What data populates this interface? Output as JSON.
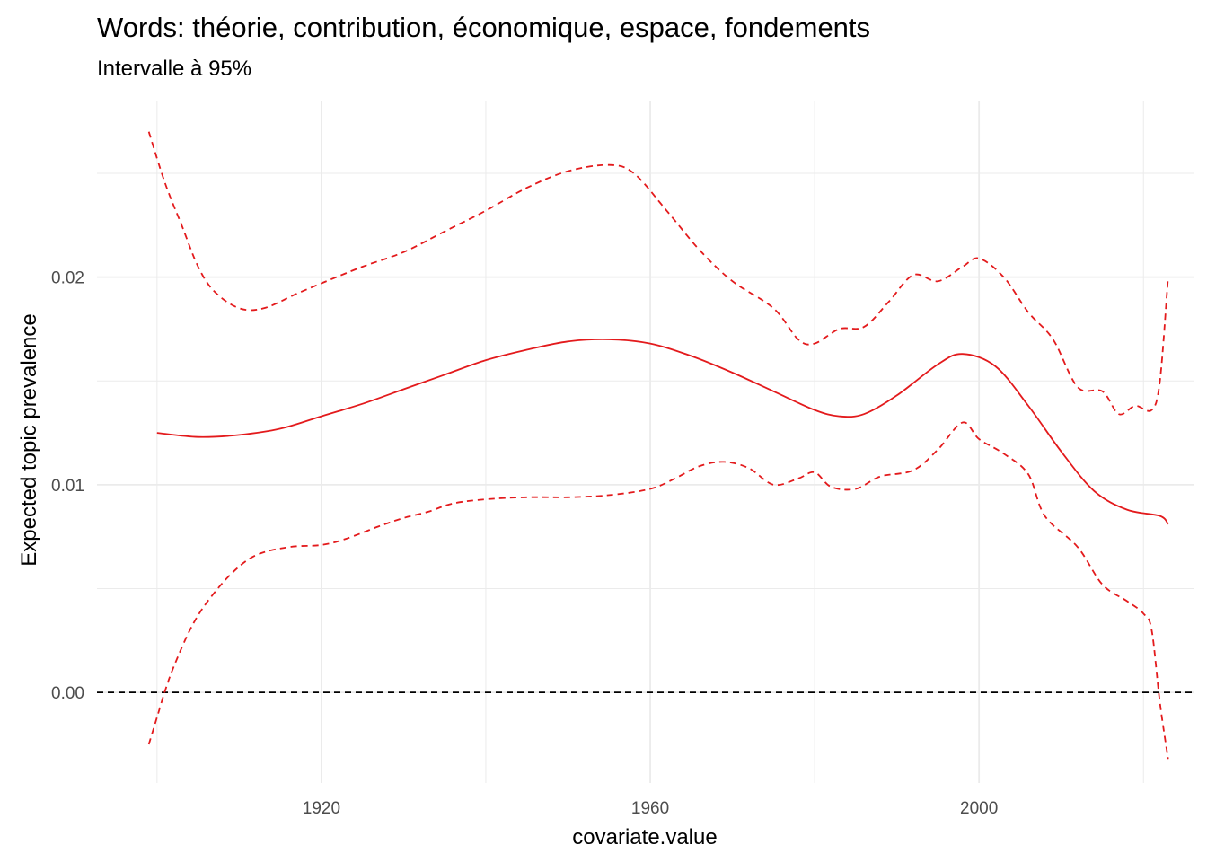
{
  "chart_data": {
    "type": "line",
    "title": "Words: théorie, contribution, économique, espace, fondements",
    "subtitle": "Intervalle à 95%",
    "xlabel": "covariate.value",
    "ylabel": "Expected topic prevalence",
    "xlim": [
      1892.7,
      2026.2
    ],
    "ylim": [
      -0.00436,
      0.0285
    ],
    "x_ticks": [
      1920,
      1960,
      2000
    ],
    "x_tick_labels": [
      "1920",
      "1960",
      "2000"
    ],
    "x_minor_ticks": [
      1900,
      1940,
      1980,
      2020
    ],
    "y_ticks": [
      0,
      0.01,
      0.02
    ],
    "y_tick_labels": [
      "0.00",
      "0.01",
      "0.02"
    ],
    "y_minor_ticks": [
      0.005,
      0.015,
      0.025
    ],
    "grid": true,
    "reference_line": {
      "y": 0,
      "style": "dashed",
      "color": "#000000"
    },
    "colors": {
      "series": "#e31a1c",
      "grid": "#ebebeb",
      "reference": "#000000"
    },
    "series": [
      {
        "role": "estimate",
        "style": "solid",
        "x": [
          1900,
          1905,
          1910,
          1915,
          1920,
          1925,
          1930,
          1935,
          1940,
          1945,
          1950,
          1955,
          1960,
          1965,
          1970,
          1975,
          1980,
          1983,
          1986,
          1990,
          1995,
          1998,
          2002,
          2006,
          2010,
          2014,
          2018,
          2022,
          2023
        ],
        "y": [
          0.0125,
          0.0123,
          0.0124,
          0.0127,
          0.0133,
          0.0139,
          0.0146,
          0.0153,
          0.016,
          0.0165,
          0.0169,
          0.017,
          0.0168,
          0.0162,
          0.0154,
          0.0145,
          0.0136,
          0.0133,
          0.0134,
          0.0143,
          0.0158,
          0.0163,
          0.0157,
          0.0138,
          0.0116,
          0.0097,
          0.0088,
          0.0085,
          0.0081
        ]
      },
      {
        "role": "upper",
        "style": "dashed",
        "x": [
          1899,
          1901,
          1903,
          1905,
          1907,
          1910,
          1913,
          1917,
          1920,
          1925,
          1930,
          1935,
          1940,
          1945,
          1950,
          1955,
          1958,
          1962,
          1966,
          1970,
          1975,
          1978,
          1980,
          1983,
          1986,
          1989,
          1992,
          1995,
          1998,
          2000,
          2003,
          2006,
          2009,
          2012,
          2015,
          2017,
          2019,
          2021,
          2022,
          2023
        ],
        "y": [
          0.027,
          0.0245,
          0.0225,
          0.0205,
          0.0193,
          0.0185,
          0.0185,
          0.0192,
          0.0197,
          0.0205,
          0.0212,
          0.0222,
          0.0232,
          0.0243,
          0.0251,
          0.0254,
          0.025,
          0.0232,
          0.0213,
          0.0198,
          0.0185,
          0.017,
          0.0168,
          0.0175,
          0.0176,
          0.0188,
          0.0201,
          0.0198,
          0.0205,
          0.0209,
          0.02,
          0.0183,
          0.017,
          0.0147,
          0.0145,
          0.0134,
          0.0138,
          0.0136,
          0.015,
          0.02
        ]
      },
      {
        "role": "lower",
        "style": "dashed",
        "x": [
          1899,
          1900,
          1901,
          1902,
          1904,
          1906,
          1909,
          1912,
          1916,
          1920,
          1923,
          1927,
          1930,
          1933,
          1936,
          1940,
          1945,
          1950,
          1955,
          1960,
          1963,
          1966,
          1969,
          1972,
          1975,
          1978,
          1980,
          1982,
          1985,
          1988,
          1992,
          1995,
          1998,
          2000,
          2003,
          2006,
          2008,
          2012,
          2015,
          2018,
          2020,
          2021,
          2022,
          2023
        ],
        "y": [
          -0.0025,
          -0.0012,
          0.0001,
          0.0012,
          0.003,
          0.0043,
          0.0057,
          0.0066,
          0.007,
          0.0071,
          0.0074,
          0.008,
          0.0084,
          0.0087,
          0.0091,
          0.0093,
          0.0094,
          0.0094,
          0.0095,
          0.0098,
          0.0103,
          0.0109,
          0.0111,
          0.0108,
          0.01,
          0.0103,
          0.0106,
          0.0099,
          0.0098,
          0.0104,
          0.0107,
          0.0117,
          0.013,
          0.0122,
          0.0115,
          0.0105,
          0.0085,
          0.007,
          0.0052,
          0.0044,
          0.0038,
          0.003,
          -0.0005,
          -0.0032
        ]
      }
    ]
  }
}
